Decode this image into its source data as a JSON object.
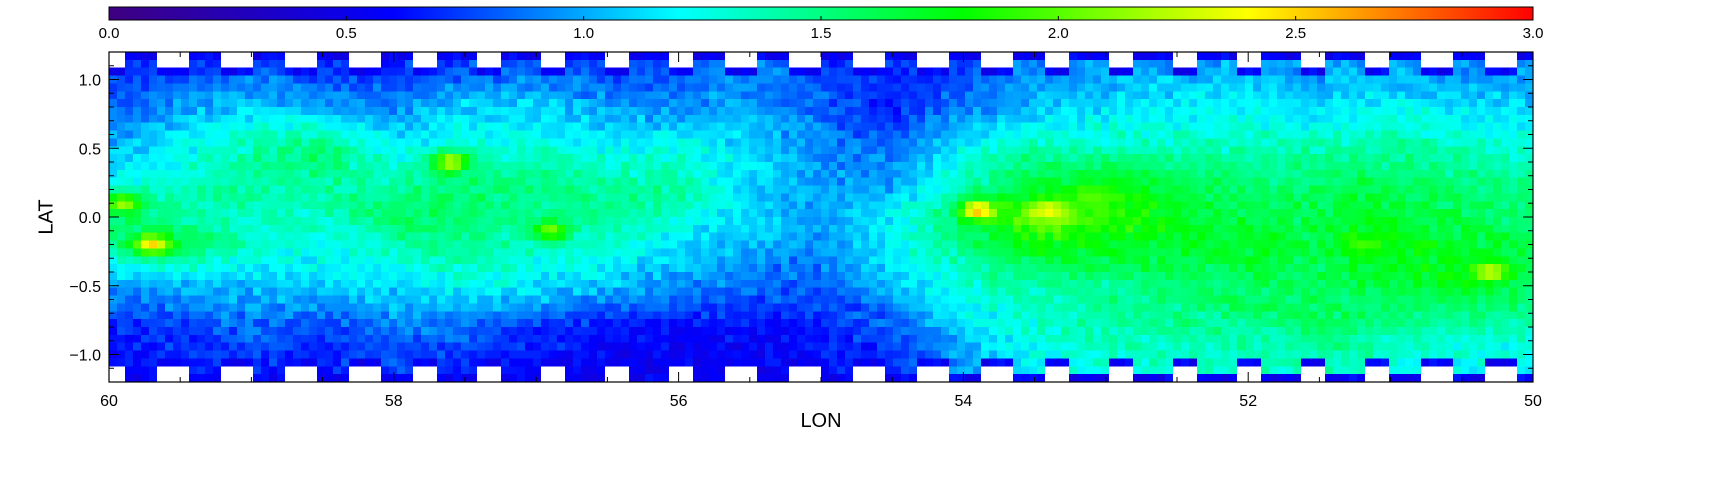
{
  "chart_data": {
    "type": "heatmap",
    "title": "",
    "xlabel": "LON",
    "ylabel": "LAT",
    "xlim": [
      60,
      50
    ],
    "ylim": [
      -1.2,
      1.2
    ],
    "x_ticks": [
      60,
      58,
      56,
      54,
      52,
      50
    ],
    "x_tick_labels": [
      "60",
      "58",
      "56",
      "54",
      "52",
      "50"
    ],
    "y_ticks": [
      1.0,
      0.5,
      0.0,
      -0.5,
      -1.0
    ],
    "y_tick_labels": [
      "1.0",
      "0.5",
      "0.0",
      "−0.5",
      "−1.0"
    ],
    "colorbar": {
      "range": [
        0.0,
        3.0
      ],
      "ticks": [
        0.0,
        0.5,
        1.0,
        1.5,
        2.0,
        2.5,
        3.0
      ],
      "tick_labels": [
        "0.0",
        "0.5",
        "1.0",
        "1.5",
        "2.0",
        "2.5",
        "3.0"
      ],
      "colormap": "rainbow",
      "colormap_stops": [
        "#3f0080",
        "#0000ff",
        "#00ffff",
        "#00ff00",
        "#ffff00",
        "#ff0000"
      ]
    },
    "grid": false,
    "field": {
      "description_free": true,
      "lon_nodes": [
        60.0,
        59.5,
        59.0,
        58.5,
        58.0,
        57.5,
        57.0,
        56.5,
        56.0,
        55.5,
        55.0,
        54.5,
        54.0,
        53.5,
        53.0,
        52.5,
        52.0,
        51.5,
        51.0,
        50.5,
        50.0
      ],
      "lat_nodes": [
        1.1,
        0.8,
        0.5,
        0.2,
        0.0,
        -0.2,
        -0.5,
        -0.8,
        -1.1
      ],
      "values": [
        [
          0.75,
          0.7,
          0.8,
          0.7,
          0.7,
          0.75,
          0.8,
          0.75,
          0.8,
          0.9,
          0.75,
          0.7,
          0.75,
          0.9,
          0.95,
          1.0,
          1.0,
          0.95,
          1.0,
          0.95,
          0.95
        ],
        [
          0.85,
          0.95,
          1.1,
          1.0,
          0.9,
          1.1,
          1.1,
          0.95,
          0.95,
          1.0,
          0.85,
          0.65,
          0.9,
          1.05,
          1.15,
          1.15,
          1.2,
          1.1,
          1.2,
          1.15,
          1.1
        ],
        [
          1.05,
          1.2,
          1.4,
          1.55,
          1.2,
          1.3,
          1.3,
          1.2,
          1.25,
          1.1,
          0.9,
          0.85,
          1.2,
          1.4,
          1.35,
          1.35,
          1.35,
          1.4,
          1.4,
          1.35,
          1.3
        ],
        [
          1.3,
          1.35,
          1.45,
          1.4,
          1.45,
          1.55,
          1.5,
          1.45,
          1.4,
          1.15,
          0.95,
          1.0,
          1.4,
          1.7,
          1.8,
          1.65,
          1.55,
          1.6,
          1.65,
          1.55,
          1.5
        ],
        [
          1.5,
          1.45,
          1.3,
          1.35,
          1.6,
          1.5,
          1.45,
          1.45,
          1.3,
          1.1,
          1.0,
          1.2,
          1.6,
          2.1,
          1.95,
          1.75,
          1.65,
          1.6,
          1.7,
          1.6,
          1.55
        ],
        [
          1.55,
          1.65,
          1.35,
          1.25,
          1.4,
          1.45,
          1.35,
          1.3,
          1.15,
          1.0,
          0.95,
          1.2,
          1.5,
          1.8,
          1.75,
          1.7,
          1.7,
          1.65,
          1.8,
          1.7,
          1.65
        ],
        [
          1.0,
          1.0,
          1.05,
          1.1,
          1.1,
          1.25,
          1.15,
          1.05,
          0.95,
          0.85,
          0.8,
          1.05,
          1.3,
          1.4,
          1.45,
          1.55,
          1.6,
          1.6,
          1.65,
          1.75,
          1.6
        ],
        [
          0.7,
          0.75,
          0.85,
          0.75,
          0.9,
          0.85,
          0.75,
          0.65,
          0.6,
          0.6,
          0.65,
          0.8,
          1.1,
          1.3,
          1.4,
          1.45,
          1.45,
          1.55,
          1.45,
          1.4,
          1.35
        ],
        [
          0.6,
          0.65,
          0.7,
          0.65,
          0.75,
          0.7,
          0.6,
          0.55,
          0.55,
          0.55,
          0.6,
          0.7,
          0.95,
          1.2,
          1.25,
          1.3,
          1.3,
          1.35,
          1.25,
          1.2,
          1.15
        ]
      ],
      "peaks": [
        {
          "lon": 53.9,
          "lat": 0.05,
          "value": 2.6
        },
        {
          "lon": 53.4,
          "lat": 0.05,
          "value": 2.4
        },
        {
          "lon": 59.7,
          "lat": -0.2,
          "value": 2.5
        },
        {
          "lon": 57.6,
          "lat": 0.4,
          "value": 2.3
        },
        {
          "lon": 59.9,
          "lat": 0.1,
          "value": 2.2
        },
        {
          "lon": 56.9,
          "lat": -0.1,
          "value": 2.1
        },
        {
          "lon": 50.3,
          "lat": -0.4,
          "value": 2.3
        },
        {
          "lon": 53.1,
          "lat": 0.15,
          "value": 2.0
        },
        {
          "lon": 51.2,
          "lat": -0.2,
          "value": 1.95
        }
      ]
    }
  }
}
